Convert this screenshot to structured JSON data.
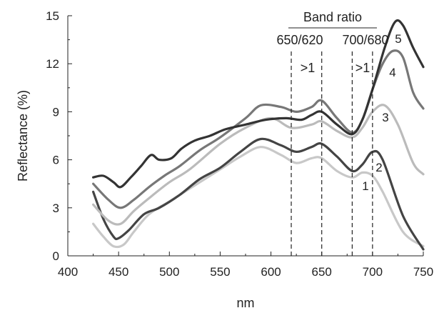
{
  "chart_data": {
    "type": "line",
    "xlabel": "nm",
    "ylabel": "Reflectance (%)",
    "xlim": [
      400,
      750
    ],
    "ylim": [
      0,
      15
    ],
    "x_ticks": [
      "400",
      "450",
      "500",
      "550",
      "600",
      "650",
      "700",
      "750"
    ],
    "y_ticks": [
      "0",
      "3",
      "6",
      "9",
      "12",
      "15"
    ],
    "grid": false,
    "legend": "none",
    "annotations": {
      "band_ratio_title": "Band ratio",
      "ratio_left_label": "650/620",
      "ratio_right_label": "700/680",
      "left_gt": ">1",
      "right_gt": ">1",
      "dashed_lines_x": [
        620,
        650,
        680,
        700
      ]
    },
    "series": [
      {
        "label": "1",
        "color": "#c8c8c8",
        "x": [
          425,
          435,
          445,
          455,
          465,
          480,
          500,
          520,
          550,
          570,
          590,
          610,
          625,
          640,
          650,
          665,
          680,
          690,
          700,
          710,
          730,
          750
        ],
        "y": [
          2.0,
          1.2,
          0.6,
          0.7,
          1.5,
          2.6,
          3.4,
          4.2,
          5.4,
          6.2,
          6.8,
          6.3,
          5.8,
          6.1,
          6.1,
          5.3,
          4.9,
          5.2,
          5.0,
          4.0,
          1.5,
          0.6
        ]
      },
      {
        "label": "2",
        "color": "#444444",
        "x": [
          425,
          435,
          445,
          450,
          460,
          475,
          490,
          510,
          530,
          550,
          570,
          590,
          610,
          625,
          640,
          650,
          665,
          680,
          690,
          700,
          710,
          730,
          750
        ],
        "y": [
          4.0,
          2.3,
          1.2,
          1.1,
          1.6,
          2.6,
          3.0,
          3.8,
          4.8,
          5.5,
          6.5,
          7.3,
          6.9,
          6.5,
          6.8,
          7.0,
          6.2,
          5.3,
          5.7,
          6.5,
          6.0,
          2.5,
          0.4
        ]
      },
      {
        "label": "3",
        "color": "#bbbbbb",
        "x": [
          425,
          440,
          452,
          465,
          480,
          500,
          520,
          550,
          575,
          600,
          620,
          640,
          650,
          665,
          680,
          690,
          700,
          712,
          725,
          740,
          750
        ],
        "y": [
          3.2,
          2.2,
          2.0,
          2.8,
          3.6,
          4.6,
          5.4,
          7.0,
          8.0,
          8.6,
          8.0,
          8.2,
          8.4,
          7.8,
          7.4,
          8.0,
          9.0,
          9.4,
          8.2,
          5.8,
          5.1
        ]
      },
      {
        "label": "4",
        "color": "#777777",
        "x": [
          425,
          440,
          452,
          465,
          480,
          495,
          510,
          530,
          550,
          575,
          590,
          610,
          625,
          640,
          650,
          665,
          680,
          690,
          700,
          710,
          720,
          730,
          740,
          750
        ],
        "y": [
          4.5,
          3.5,
          3.0,
          3.5,
          4.3,
          5.0,
          5.6,
          6.6,
          7.4,
          8.6,
          9.4,
          9.3,
          9.0,
          9.3,
          9.7,
          8.6,
          7.7,
          8.5,
          10.4,
          12.0,
          12.8,
          12.4,
          10.2,
          9.2
        ]
      },
      {
        "label": "5",
        "color": "#333333",
        "x": [
          425,
          435,
          445,
          452,
          462,
          472,
          482,
          490,
          502,
          512,
          525,
          540,
          555,
          575,
          595,
          615,
          630,
          640,
          650,
          665,
          680,
          690,
          700,
          712,
          722,
          730,
          740,
          750
        ],
        "y": [
          4.9,
          5.0,
          4.6,
          4.3,
          4.9,
          5.6,
          6.3,
          6.0,
          6.1,
          6.7,
          7.2,
          7.5,
          7.9,
          8.2,
          8.5,
          8.6,
          8.5,
          8.8,
          9.0,
          8.2,
          7.6,
          8.5,
          10.4,
          13.0,
          14.6,
          14.4,
          13.0,
          11.8
        ]
      }
    ]
  }
}
